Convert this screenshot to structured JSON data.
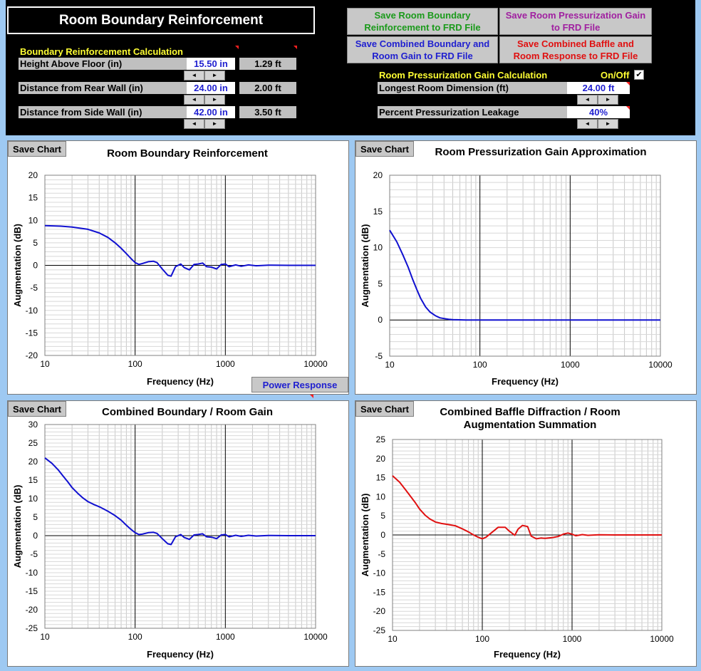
{
  "app": {
    "title": "Room Boundary Reinforcement"
  },
  "boundary": {
    "section_label": "Boundary Reinforcement Calculation",
    "rows": [
      {
        "label": "Height Above Floor (in)",
        "value": "15.50 in",
        "ft": "1.29 ft"
      },
      {
        "label": "Distance from Rear Wall (in)",
        "value": "24.00 in",
        "ft": "2.00 ft"
      },
      {
        "label": "Distance from Side Wall (in)",
        "value": "42.00 in",
        "ft": "3.50 ft"
      }
    ]
  },
  "pressurization": {
    "section_label": "Room Pressurization Gain Calculation",
    "toggle_label": "On/Off",
    "toggle_checked": true,
    "toggle_mark": "✔",
    "rows": [
      {
        "label": "Longest Room Dimension (ft)",
        "value": "24.00 ft"
      },
      {
        "label": "Percent Pressurization Leakage",
        "value": "40%"
      }
    ]
  },
  "spinner": {
    "left": "◄",
    "right": "►"
  },
  "buttons": {
    "save_boundary": "Save Room Boundary Reinforcement to FRD File",
    "save_pressurization": "Save Room Pressurization Gain to FRD File",
    "save_combined": "Save Combined Boundary and Room Gain to FRD File",
    "save_baffle": "Save Combined Baffle and Room Response to FRD File",
    "save_chart": "Save Chart",
    "power_response": "Power Response"
  },
  "colors": {
    "save_boundary": "#1a9a1a",
    "save_pressurization": "#a020a0",
    "save_combined": "#1f1fd0",
    "save_baffle": "#e01010",
    "blue_line": "#1010d0",
    "red_line": "#e01010"
  },
  "chart_data": [
    {
      "type": "line",
      "title": "Room Boundary Reinforcement",
      "xlabel": "Frequency (Hz)",
      "ylabel": "Augmentation (dB)",
      "xscale": "log",
      "xlim": [
        10,
        10000
      ],
      "ylim": [
        -20,
        20
      ],
      "yticks": [
        -20,
        -15,
        -10,
        -5,
        0,
        5,
        10,
        15,
        20
      ],
      "xticks": [
        10,
        100,
        1000,
        10000
      ],
      "color": "blue",
      "series": [
        {
          "x": [
            10,
            15,
            20,
            30,
            40,
            50,
            60,
            70,
            80,
            90,
            100,
            110,
            120,
            140,
            160,
            175,
            200,
            230,
            250,
            280,
            320,
            350,
            400,
            450,
            500,
            560,
            620,
            700,
            800,
            900,
            1000,
            1100,
            1300,
            1500,
            1800,
            2200,
            3000,
            5000,
            10000
          ],
          "y": [
            8.8,
            8.7,
            8.5,
            8.0,
            7.2,
            6.2,
            5.0,
            3.8,
            2.6,
            1.5,
            0.6,
            0.2,
            0.4,
            0.8,
            0.9,
            0.6,
            -0.8,
            -2.2,
            -2.4,
            -0.3,
            0.3,
            -0.5,
            -1.0,
            0.2,
            0.3,
            0.5,
            -0.3,
            -0.4,
            -0.8,
            0.2,
            0.3,
            -0.3,
            0.1,
            -0.2,
            0.1,
            -0.1,
            0.05,
            0,
            0
          ]
        }
      ]
    },
    {
      "type": "line",
      "title": "Room Pressurization Gain Approximation",
      "xlabel": "Frequency (Hz)",
      "ylabel": "Augmentation (dB)",
      "xscale": "log",
      "xlim": [
        10,
        10000
      ],
      "ylim": [
        -5,
        20
      ],
      "yticks": [
        -5,
        0,
        5,
        10,
        15,
        20
      ],
      "xticks": [
        10,
        100,
        1000,
        10000
      ],
      "color": "blue",
      "series": [
        {
          "x": [
            10,
            12,
            14,
            16,
            18,
            20,
            22,
            25,
            28,
            32,
            36,
            40,
            45,
            50,
            60,
            70,
            80,
            100,
            200,
            1000,
            10000
          ],
          "y": [
            12.4,
            10.8,
            9.0,
            7.3,
            5.6,
            4.2,
            3.0,
            1.8,
            1.1,
            0.6,
            0.3,
            0.2,
            0.1,
            0.05,
            0.02,
            0,
            0,
            0,
            0,
            0,
            0
          ]
        }
      ]
    },
    {
      "type": "line",
      "title": "Combined Boundary / Room Gain",
      "xlabel": "Frequency (Hz)",
      "ylabel": "Augmentation (dB)",
      "xscale": "log",
      "xlim": [
        10,
        10000
      ],
      "ylim": [
        -25,
        30
      ],
      "yticks": [
        -25,
        -20,
        -15,
        -10,
        -5,
        0,
        5,
        10,
        15,
        20,
        25,
        30
      ],
      "xticks": [
        10,
        100,
        1000,
        10000
      ],
      "color": "blue",
      "series": [
        {
          "x": [
            10,
            12,
            14,
            16,
            18,
            20,
            23,
            26,
            30,
            35,
            40,
            45,
            50,
            60,
            70,
            80,
            90,
            100,
            110,
            120,
            140,
            160,
            175,
            200,
            230,
            250,
            280,
            320,
            350,
            400,
            450,
            500,
            560,
            620,
            700,
            800,
            900,
            1000,
            1100,
            1300,
            1500,
            1800,
            2200,
            3000,
            5000,
            10000
          ],
          "y": [
            21.0,
            19.5,
            17.8,
            16.0,
            14.5,
            13.0,
            11.5,
            10.3,
            9.2,
            8.4,
            7.8,
            7.2,
            6.6,
            5.4,
            4.2,
            2.8,
            1.7,
            0.8,
            0.3,
            0.4,
            0.8,
            0.9,
            0.6,
            -0.8,
            -2.2,
            -2.4,
            -0.3,
            0.3,
            -0.5,
            -1.0,
            0.2,
            0.3,
            0.5,
            -0.3,
            -0.4,
            -0.8,
            0.2,
            0.3,
            -0.3,
            0.1,
            -0.2,
            0.1,
            -0.1,
            0.05,
            0,
            0
          ]
        }
      ]
    },
    {
      "type": "line",
      "title": "Combined Baffle Diffraction / Room Augmentation Summation",
      "xlabel": "Frequency (Hz)",
      "ylabel": "Augmentation (dB)",
      "xscale": "log",
      "xlim": [
        10,
        10000
      ],
      "ylim": [
        -25,
        25
      ],
      "yticks": [
        -25,
        -20,
        -15,
        -10,
        -5,
        0,
        5,
        10,
        15,
        20,
        25
      ],
      "xticks": [
        10,
        100,
        1000,
        10000
      ],
      "color": "red",
      "series": [
        {
          "x": [
            10,
            12,
            14,
            16,
            18,
            20,
            23,
            26,
            30,
            35,
            40,
            50,
            60,
            70,
            80,
            90,
            100,
            110,
            130,
            150,
            180,
            200,
            230,
            250,
            280,
            320,
            350,
            400,
            450,
            500,
            600,
            700,
            800,
            900,
            1000,
            1100,
            1300,
            1500,
            2000,
            3000,
            5000,
            10000
          ],
          "y": [
            15.5,
            13.8,
            11.8,
            10.0,
            8.4,
            6.8,
            5.2,
            4.2,
            3.4,
            3.0,
            2.8,
            2.4,
            1.6,
            0.8,
            0.0,
            -0.6,
            -1.0,
            -0.6,
            0.8,
            2.0,
            2.0,
            1.0,
            -0.1,
            1.5,
            2.5,
            2.2,
            -0.3,
            -1.0,
            -0.8,
            -0.9,
            -0.7,
            -0.4,
            0.2,
            0.5,
            0.2,
            -0.2,
            0.1,
            -0.1,
            0.05,
            0,
            0,
            0
          ]
        }
      ]
    }
  ]
}
